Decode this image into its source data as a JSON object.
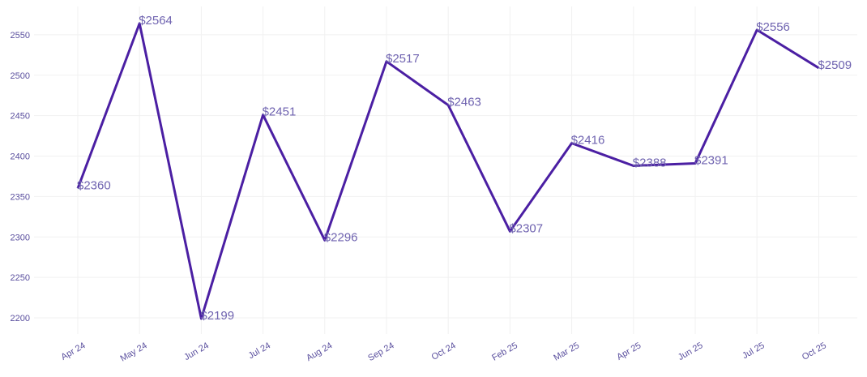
{
  "chart_data": {
    "type": "line",
    "categories": [
      "Apr 24",
      "May 24",
      "Jun 24",
      "Jul 24",
      "Aug 24",
      "Sep 24",
      "Oct 24",
      "Feb 25",
      "Mar 25",
      "Apr 25",
      "Jun 25",
      "Jul 25",
      "Oct 25"
    ],
    "values": [
      2360,
      2564,
      2199,
      2451,
      2296,
      2517,
      2463,
      2307,
      2416,
      2388,
      2391,
      2556,
      2509
    ],
    "data_labels": [
      "$2360",
      "$2564",
      "$2199",
      "$2451",
      "$2296",
      "$2517",
      "$2463",
      "$2307",
      "$2416",
      "$2388",
      "$2391",
      "$2556",
      "$2509"
    ],
    "y_ticks": [
      2200,
      2250,
      2300,
      2350,
      2400,
      2450,
      2500,
      2550
    ],
    "ylim": [
      2180,
      2585
    ],
    "grid": true,
    "line_color": "#4b1fa3",
    "label_color": "#6f63b0",
    "tick_color": "#5a4f9e"
  }
}
